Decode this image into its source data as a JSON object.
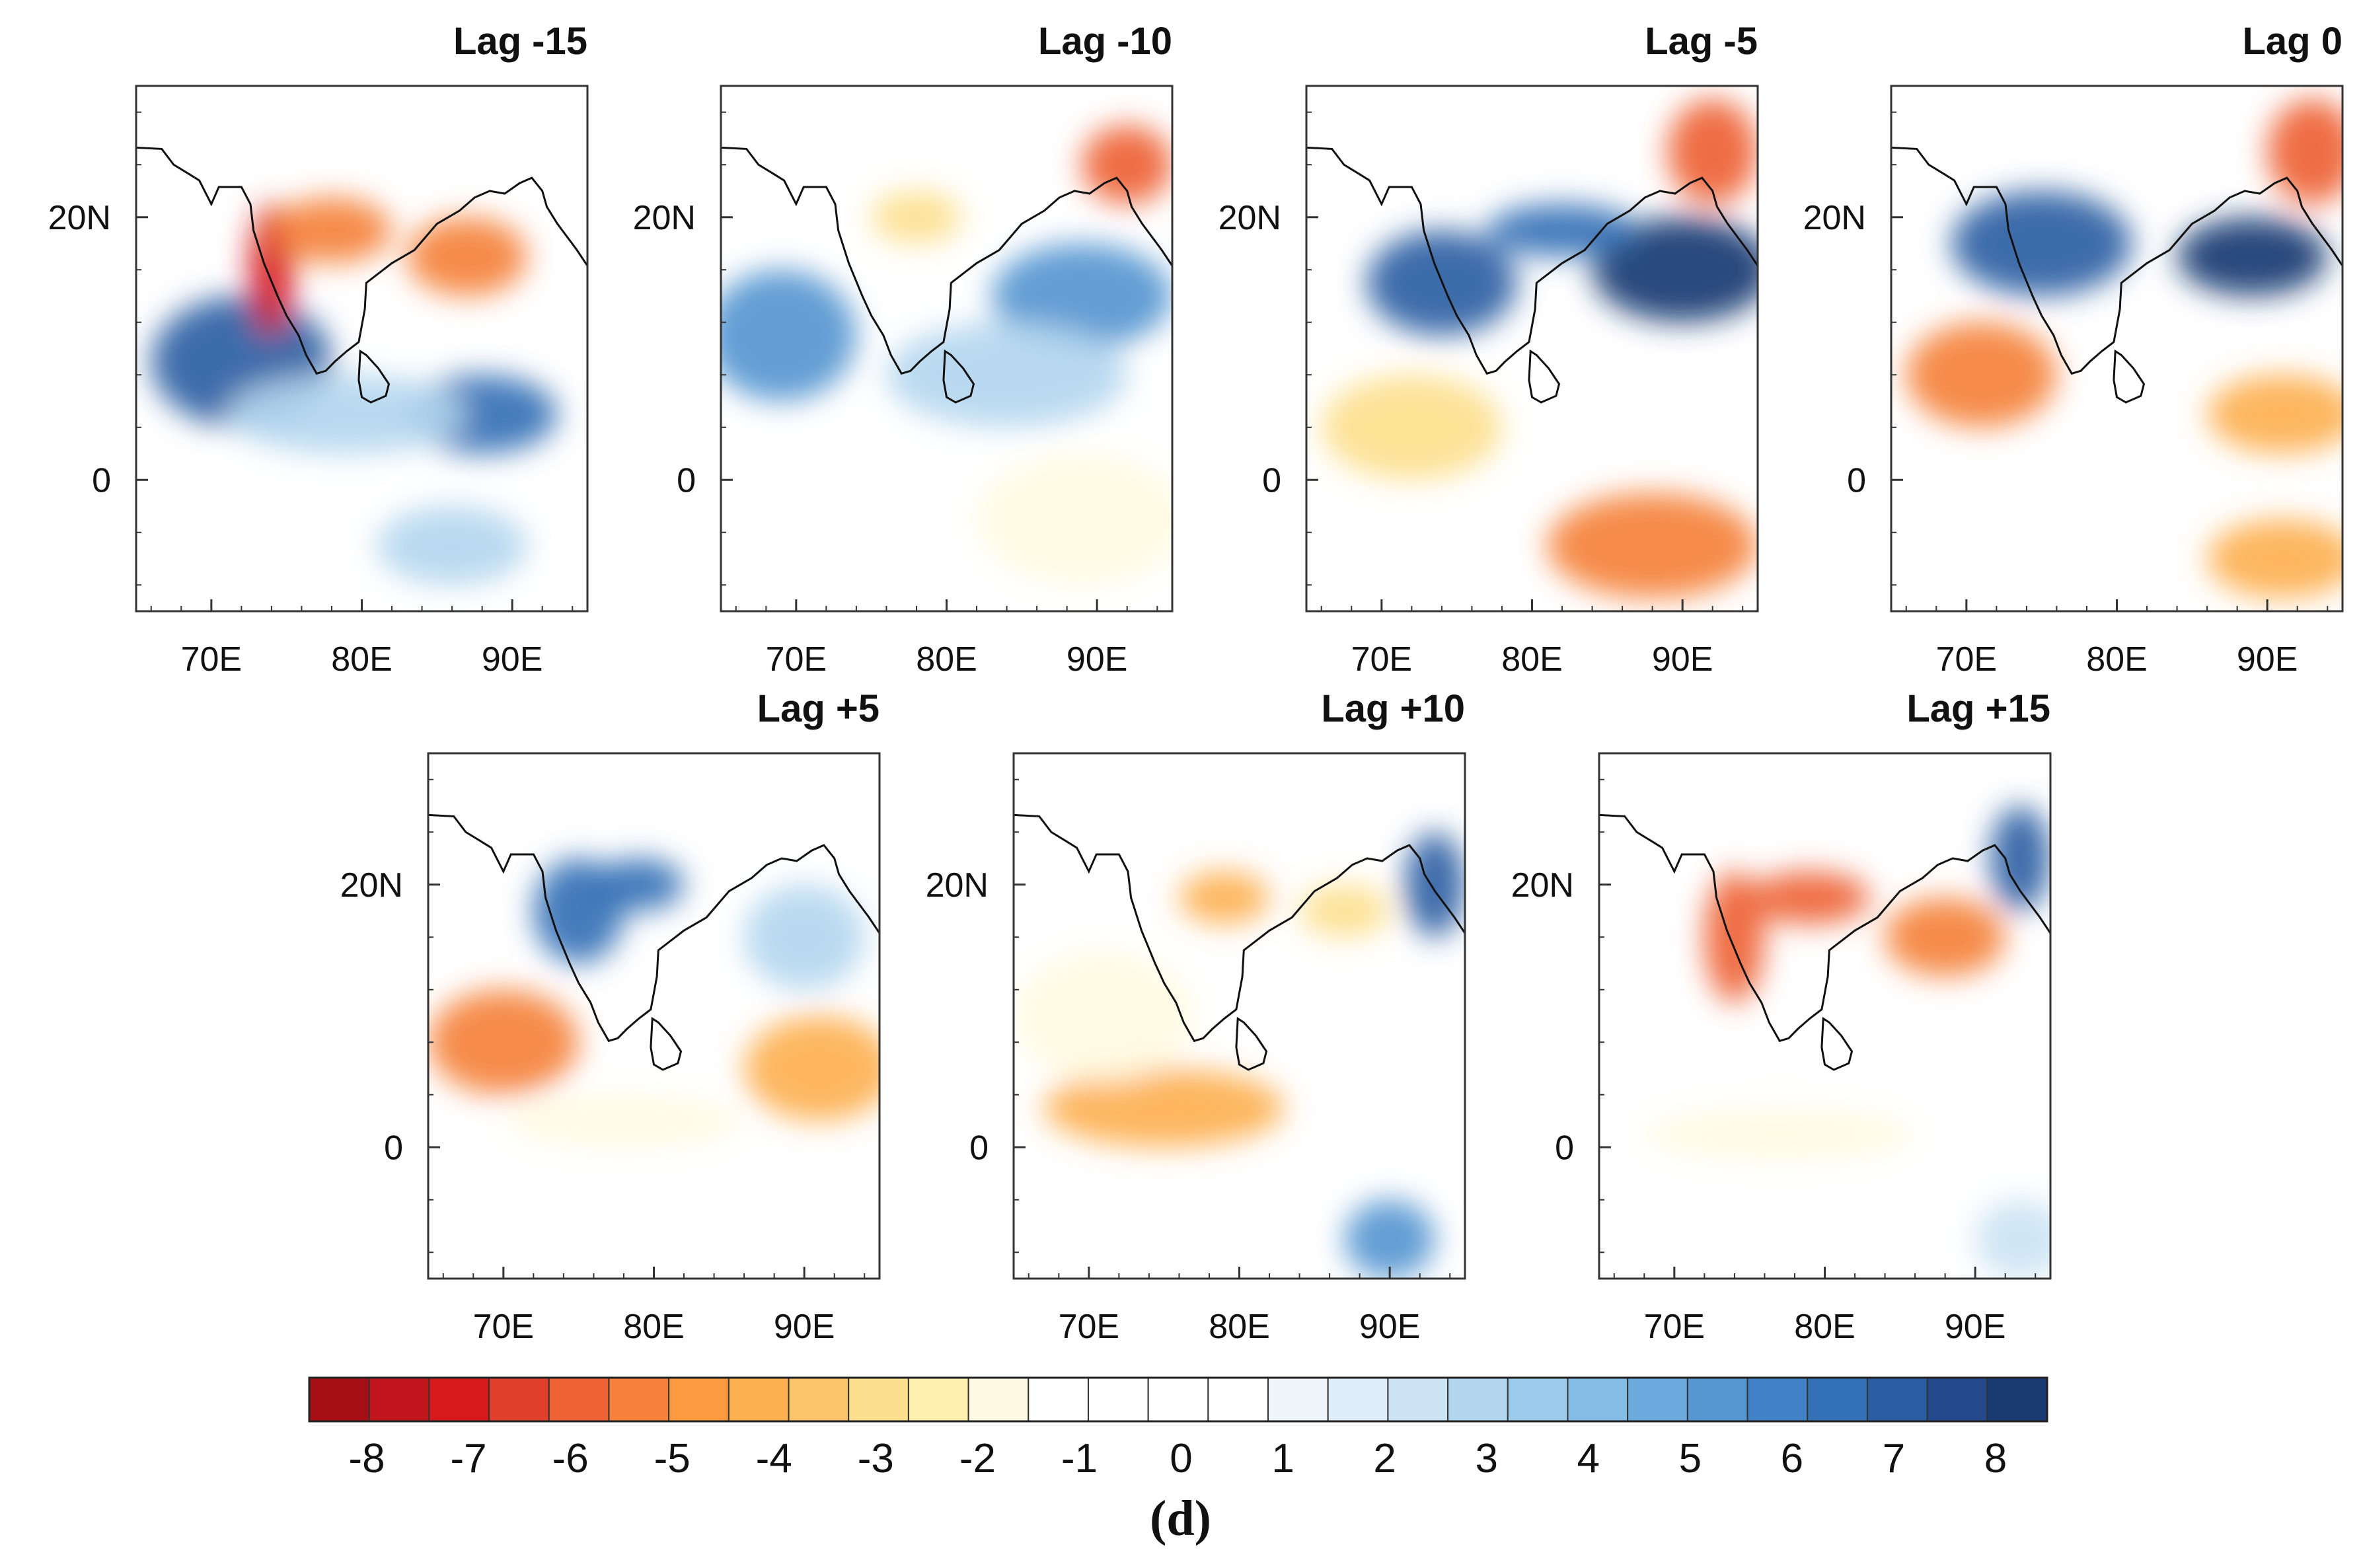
{
  "chart_data": {
    "type": "heatmap",
    "description_units": "composite anomaly",
    "colorbar": {
      "ticks": [
        "-8",
        "-7",
        "-6",
        "-5",
        "-4",
        "-3",
        "-2",
        "-1",
        "0",
        "1",
        "2",
        "3",
        "4",
        "5",
        "6",
        "7",
        "8"
      ],
      "colors": [
        "#a50f15",
        "#c0151d",
        "#d7191c",
        "#e0402b",
        "#ee6133",
        "#f5813a",
        "#fb9a3f",
        "#fdb050",
        "#fcc46a",
        "#fde08d",
        "#fff0b0",
        "#fffbe2",
        "#ffffff",
        "#ffffff",
        "#ffffff",
        "#ffffff",
        "#eef6fc",
        "#deedf8",
        "#cbe3f3",
        "#b3d6ef",
        "#9ccbec",
        "#84bce6",
        "#6ca9dc",
        "#5596d0",
        "#4182c6",
        "#3470b6",
        "#2a5ea3",
        "#23498c",
        "#1a3a73"
      ]
    },
    "x_ticks": [
      "70E",
      "80E",
      "90E"
    ],
    "y_ticks": [
      "20N",
      "0"
    ],
    "xlim": [
      65,
      95
    ],
    "ylim": [
      -10,
      30
    ],
    "panels": [
      {
        "title": "Lag -15",
        "features": [
          {
            "lon": 72,
            "lat": 9,
            "value": 7,
            "rx": 6,
            "ry": 5
          },
          {
            "lon": 88,
            "lat": 5,
            "value": 6,
            "rx": 5,
            "ry": 3
          },
          {
            "lon": 79,
            "lat": 5,
            "value": 3,
            "rx": 8,
            "ry": 3
          },
          {
            "lon": 86,
            "lat": -5,
            "value": 3,
            "rx": 5,
            "ry": 3
          },
          {
            "lon": 74,
            "lat": 16,
            "value": -7,
            "rx": 1.5,
            "ry": 5
          },
          {
            "lon": 78,
            "lat": 19,
            "value": -5,
            "rx": 4,
            "ry": 2.5
          },
          {
            "lon": 87,
            "lat": 17,
            "value": -5,
            "rx": 4,
            "ry": 3
          }
        ]
      },
      {
        "title": "Lag -10",
        "features": [
          {
            "lon": 69,
            "lat": 11,
            "value": 5,
            "rx": 5,
            "ry": 5
          },
          {
            "lon": 89,
            "lat": 14,
            "value": 5,
            "rx": 6,
            "ry": 4
          },
          {
            "lon": 84,
            "lat": 8,
            "value": 3,
            "rx": 8,
            "ry": 4
          },
          {
            "lon": 92,
            "lat": 24,
            "value": -6,
            "rx": 3,
            "ry": 3
          },
          {
            "lon": 78,
            "lat": 20,
            "value": -3,
            "rx": 3,
            "ry": 2
          },
          {
            "lon": 89,
            "lat": -3,
            "value": -2,
            "rx": 7,
            "ry": 5
          }
        ]
      },
      {
        "title": "Lag -5",
        "features": [
          {
            "lon": 74,
            "lat": 15,
            "value": 7,
            "rx": 5,
            "ry": 4
          },
          {
            "lon": 90,
            "lat": 16,
            "value": 8,
            "rx": 6,
            "ry": 4
          },
          {
            "lon": 82,
            "lat": 19,
            "value": 6,
            "rx": 5,
            "ry": 2
          },
          {
            "lon": 92,
            "lat": 25,
            "value": -6,
            "rx": 3,
            "ry": 4
          },
          {
            "lon": 72,
            "lat": 4,
            "value": -3,
            "rx": 6,
            "ry": 4
          },
          {
            "lon": 88,
            "lat": -5,
            "value": -5,
            "rx": 7,
            "ry": 4
          }
        ]
      },
      {
        "title": "Lag 0",
        "features": [
          {
            "lon": 75,
            "lat": 18,
            "value": 7,
            "rx": 6,
            "ry": 4
          },
          {
            "lon": 89,
            "lat": 17,
            "value": 8,
            "rx": 5,
            "ry": 3
          },
          {
            "lon": 93,
            "lat": 25,
            "value": -6,
            "rx": 3,
            "ry": 4
          },
          {
            "lon": 71,
            "lat": 8,
            "value": -5,
            "rx": 5,
            "ry": 4
          },
          {
            "lon": 91,
            "lat": 5,
            "value": -4,
            "rx": 5,
            "ry": 3
          },
          {
            "lon": 91,
            "lat": -6,
            "value": -4,
            "rx": 5,
            "ry": 3
          }
        ]
      },
      {
        "title": "Lag +5",
        "features": [
          {
            "lon": 75,
            "lat": 18,
            "value": 6,
            "rx": 3,
            "ry": 4
          },
          {
            "lon": 79,
            "lat": 20,
            "value": 6,
            "rx": 3,
            "ry": 2
          },
          {
            "lon": 90,
            "lat": 16,
            "value": 3,
            "rx": 4,
            "ry": 4
          },
          {
            "lon": 70,
            "lat": 8,
            "value": -5,
            "rx": 5,
            "ry": 4
          },
          {
            "lon": 91,
            "lat": 6,
            "value": -4,
            "rx": 5,
            "ry": 4
          },
          {
            "lon": 78,
            "lat": 2,
            "value": -2,
            "rx": 8,
            "ry": 2
          }
        ]
      },
      {
        "title": "Lag +10",
        "features": [
          {
            "lon": 93,
            "lat": 20,
            "value": 7,
            "rx": 2,
            "ry": 4
          },
          {
            "lon": 90,
            "lat": -7,
            "value": 5,
            "rx": 3,
            "ry": 3
          },
          {
            "lon": 79,
            "lat": 19,
            "value": -4,
            "rx": 3,
            "ry": 2
          },
          {
            "lon": 87,
            "lat": 18,
            "value": -3,
            "rx": 3,
            "ry": 2
          },
          {
            "lon": 75,
            "lat": 3,
            "value": -4,
            "rx": 8,
            "ry": 3
          },
          {
            "lon": 71,
            "lat": 10,
            "value": -2,
            "rx": 6,
            "ry": 5
          }
        ]
      },
      {
        "title": "Lag +15",
        "features": [
          {
            "lon": 93,
            "lat": 22,
            "value": 7,
            "rx": 2,
            "ry": 4
          },
          {
            "lon": 74,
            "lat": 16,
            "value": -6,
            "rx": 2,
            "ry": 5
          },
          {
            "lon": 79,
            "lat": 19,
            "value": -6,
            "rx": 4,
            "ry": 2
          },
          {
            "lon": 88,
            "lat": 16,
            "value": -5,
            "rx": 4,
            "ry": 3
          },
          {
            "lon": 77,
            "lat": 1,
            "value": -2,
            "rx": 9,
            "ry": 2
          },
          {
            "lon": 93,
            "lat": -7,
            "value": 2,
            "rx": 3,
            "ry": 3
          }
        ]
      }
    ]
  },
  "caption": "(d)"
}
